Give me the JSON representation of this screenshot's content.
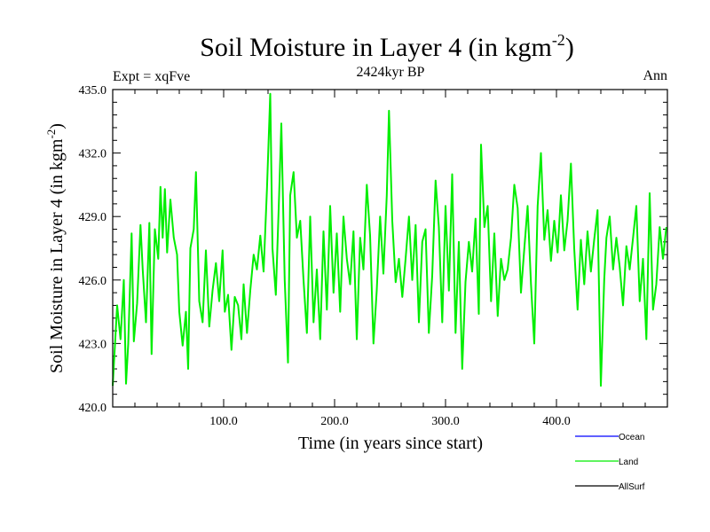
{
  "chart_data": {
    "type": "line",
    "title": "Soil Moisture in Layer 4 (in kgm",
    "title_sup": "-2",
    "title_close": ")",
    "subtitle": "2424kyr BP",
    "left_label": "Expt = xqFve",
    "right_label": "Ann",
    "xlabel": "Time (in years since start)",
    "ylabel": "Soil Moisture in Layer 4 (in kgm",
    "ylabel_sup": "-2",
    "ylabel_close": ")",
    "xlim": [
      0,
      500
    ],
    "ylim": [
      420.0,
      435.0
    ],
    "x_ticks": [
      100,
      200,
      300,
      400
    ],
    "x_tick_labels": [
      "100.0",
      "200.0",
      "300.0",
      "400.0"
    ],
    "y_ticks": [
      420,
      423,
      426,
      429,
      432,
      435
    ],
    "y_tick_labels": [
      "420.0",
      "423.0",
      "426.0",
      "429.0",
      "432.0",
      "435.0"
    ],
    "legend": [
      {
        "name": "Ocean",
        "color": "#0000ff"
      },
      {
        "name": "Land",
        "color": "#00ee00"
      },
      {
        "name": "AllSurf",
        "color": "#000000"
      }
    ],
    "series": [
      {
        "name": "Land",
        "color": "#00ee00",
        "x": [
          0,
          4,
          7,
          10,
          12,
          14,
          17,
          19,
          22,
          25,
          27,
          30,
          33,
          35,
          38,
          41,
          43,
          45,
          47,
          49,
          52,
          55,
          58,
          60,
          63,
          66,
          68,
          70,
          73,
          75,
          78,
          81,
          84,
          87,
          90,
          93,
          96,
          99,
          101,
          104,
          107,
          110,
          113,
          116,
          118,
          121,
          124,
          127,
          130,
          133,
          136,
          139,
          142,
          144,
          147,
          150,
          152,
          155,
          158,
          160,
          163,
          166,
          169,
          172,
          175,
          178,
          181,
          184,
          187,
          190,
          193,
          196,
          199,
          202,
          205,
          208,
          211,
          214,
          217,
          220,
          223,
          226,
          229,
          232,
          235,
          238,
          241,
          244,
          247,
          249,
          252,
          255,
          258,
          261,
          264,
          267,
          270,
          273,
          276,
          279,
          282,
          285,
          288,
          291,
          294,
          297,
          300,
          303,
          306,
          309,
          312,
          315,
          318,
          321,
          324,
          327,
          330,
          332,
          335,
          338,
          341,
          344,
          347,
          350,
          353,
          356,
          359,
          362,
          365,
          368,
          371,
          374,
          377,
          380,
          383,
          386,
          389,
          392,
          395,
          398,
          401,
          404,
          407,
          410,
          413,
          416,
          419,
          422,
          425,
          428,
          431,
          434,
          437,
          440,
          443,
          445,
          448,
          451,
          454,
          457,
          460,
          463,
          466,
          469,
          472,
          475,
          478,
          481,
          484,
          487,
          490,
          493,
          496,
          499
        ],
        "values": [
          421.0,
          424.8,
          423.2,
          426.0,
          421.1,
          423.0,
          428.2,
          423.1,
          424.9,
          428.6,
          426.5,
          424.0,
          428.7,
          422.5,
          428.4,
          427.0,
          430.4,
          428.0,
          430.3,
          427.3,
          429.8,
          428.0,
          427.2,
          424.5,
          422.9,
          424.5,
          421.8,
          427.5,
          428.4,
          431.1,
          425.0,
          424.0,
          427.4,
          423.8,
          425.5,
          426.8,
          425.0,
          427.4,
          424.5,
          425.3,
          422.7,
          425.2,
          424.8,
          423.2,
          425.8,
          423.5,
          425.5,
          427.2,
          426.5,
          428.1,
          426.4,
          430.3,
          434.8,
          427.5,
          425.3,
          430.0,
          433.4,
          426.0,
          422.1,
          430.0,
          431.1,
          428.0,
          428.8,
          426.0,
          423.5,
          429.0,
          424.0,
          426.5,
          423.2,
          428.3,
          424.6,
          429.5,
          425.4,
          428.2,
          424.5,
          429.0,
          427.0,
          425.8,
          428.3,
          423.2,
          428.0,
          426.5,
          430.5,
          428.1,
          423.0,
          425.5,
          429.0,
          426.3,
          430.0,
          434.0,
          428.8,
          425.9,
          427.0,
          425.2,
          427.0,
          429.0,
          426.0,
          428.6,
          424.0,
          427.8,
          428.4,
          423.5,
          426.2,
          430.7,
          428.5,
          424.0,
          429.5,
          425.5,
          431.0,
          423.5,
          427.8,
          421.8,
          425.9,
          427.8,
          426.4,
          428.9,
          424.4,
          432.4,
          428.5,
          429.5,
          425.0,
          428.2,
          424.3,
          427.0,
          426.0,
          426.5,
          428.0,
          430.5,
          429.4,
          425.4,
          427.5,
          429.5,
          425.8,
          423.0,
          429.5,
          432.0,
          427.9,
          429.3,
          426.9,
          428.8,
          427.3,
          430.0,
          427.4,
          428.8,
          431.5,
          427.5,
          424.6,
          427.9,
          425.8,
          428.3,
          426.4,
          427.9,
          429.3,
          421.0,
          426.0,
          428.0,
          429.0,
          426.5,
          428.0,
          426.6,
          424.8,
          427.6,
          426.5,
          428.0,
          429.5,
          425.0,
          427.0,
          423.2,
          430.1,
          424.6,
          425.8,
          428.5,
          427.0,
          428.5
        ]
      }
    ]
  }
}
